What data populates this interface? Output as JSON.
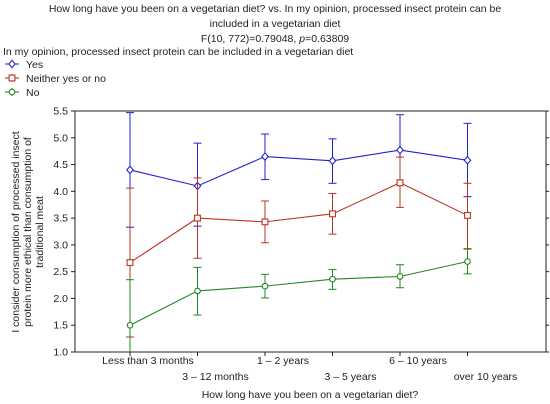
{
  "chart_data": {
    "type": "line",
    "title_lines": [
      "How long have you been on a vegetarian diet? vs. In my opinion, processed insect protein can be",
      "included in a vegetarian diet"
    ],
    "stat_line": {
      "prefix": "F(10, 772)=0.79048, ",
      "p_symbol": "p",
      "suffix": "=0.63809"
    },
    "legend_title": "In my opinion, processed insect protein can be included in a vegetarian diet",
    "legend_placement": "top-left",
    "xlabel": "How long have you been on a vegetarian diet?",
    "ylabel_lines": [
      "I consider consumption of processed insect",
      "protein more ethical than consumption of",
      "traditional meat"
    ],
    "categories": [
      "Less than 3 months",
      "3 – 12 months",
      "1 – 2 years",
      "3 – 5 years",
      "6 – 10 years",
      "over 10 years"
    ],
    "ylim": [
      1.0,
      5.5
    ],
    "yticks": [
      "1.0",
      "1.5",
      "2.0",
      "2.5",
      "3.0",
      "3.5",
      "4.0",
      "4.5",
      "5.0",
      "5.5"
    ],
    "grid": false,
    "series": [
      {
        "name": "Yes",
        "color": "#2222cc",
        "marker": "diamond",
        "values": [
          4.4,
          4.1,
          4.65,
          4.57,
          4.77,
          4.58
        ],
        "lower": [
          3.33,
          3.35,
          4.22,
          4.15,
          4.13,
          3.9
        ],
        "upper": [
          5.47,
          4.9,
          5.07,
          4.98,
          5.43,
          5.27
        ]
      },
      {
        "name": "Neither yes or no",
        "color": "#bb3322",
        "marker": "square",
        "values": [
          2.67,
          3.5,
          3.43,
          3.58,
          4.16,
          3.55
        ],
        "lower": [
          1.28,
          2.75,
          3.04,
          3.2,
          3.7,
          2.93
        ],
        "upper": [
          4.06,
          4.25,
          3.82,
          3.96,
          4.64,
          4.15
        ]
      },
      {
        "name": "No",
        "color": "#228822",
        "marker": "circle",
        "values": [
          1.5,
          2.14,
          2.23,
          2.36,
          2.41,
          2.69
        ],
        "lower": [
          0.65,
          1.69,
          2.01,
          2.17,
          2.2,
          2.46
        ],
        "upper": [
          2.35,
          2.58,
          2.45,
          2.54,
          2.63,
          2.92
        ]
      }
    ]
  }
}
